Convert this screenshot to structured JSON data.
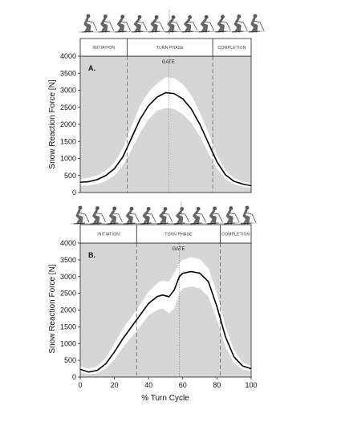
{
  "figure": {
    "ylabel": "Snow Reaction Force [N]",
    "xlabel": "% Turn Cycle"
  },
  "chart_data": [
    {
      "type": "line",
      "panel_label": "A.",
      "phases": [
        "INITIATION",
        "TURN PHASE",
        "COMPLETION"
      ],
      "phase_boundaries": [
        27.5,
        77.5
      ],
      "gate_label": "GATE",
      "gate_position": 52,
      "ylim": [
        0,
        4000
      ],
      "yticks": [
        0,
        500,
        1000,
        1500,
        2000,
        2500,
        3000,
        3500,
        4000
      ],
      "xlim": [
        0,
        100
      ],
      "x": [
        0,
        5,
        10,
        15,
        20,
        25,
        30,
        35,
        40,
        45,
        50,
        55,
        60,
        65,
        70,
        75,
        80,
        85,
        90,
        95,
        100
      ],
      "series": [
        {
          "values": [
            300,
            320,
            380,
            500,
            700,
            1050,
            1600,
            2150,
            2550,
            2800,
            2930,
            2900,
            2750,
            2450,
            2000,
            1450,
            900,
            520,
            330,
            250,
            200
          ]
        }
      ],
      "band_upper": [
        400,
        430,
        500,
        640,
        880,
        1300,
        1950,
        2550,
        2950,
        3200,
        3380,
        3350,
        3180,
        2850,
        2350,
        1750,
        1100,
        650,
        430,
        320,
        260
      ],
      "band_lower": [
        200,
        210,
        250,
        340,
        500,
        800,
        1250,
        1750,
        2150,
        2400,
        2480,
        2450,
        2300,
        2050,
        1650,
        1150,
        700,
        390,
        240,
        180,
        140
      ]
    },
    {
      "type": "line",
      "panel_label": "B.",
      "phases": [
        "INITIATION",
        "TURN PHASE",
        "COMPLETION"
      ],
      "phase_boundaries": [
        33,
        82
      ],
      "gate_label": "GATE",
      "gate_position": 58,
      "ylim": [
        0,
        4000
      ],
      "yticks": [
        0,
        500,
        1000,
        1500,
        2000,
        2500,
        3000,
        3500,
        4000
      ],
      "xlim": [
        0,
        100
      ],
      "xticks": [
        0,
        20,
        40,
        60,
        80,
        100
      ],
      "x": [
        0,
        5,
        10,
        15,
        20,
        25,
        30,
        35,
        40,
        45,
        48,
        52,
        55,
        58,
        60,
        65,
        70,
        75,
        80,
        85,
        90,
        95,
        100
      ],
      "series": [
        {
          "values": [
            230,
            150,
            200,
            400,
            750,
            1150,
            1500,
            1850,
            2200,
            2400,
            2450,
            2400,
            2600,
            3000,
            3100,
            3150,
            3100,
            2850,
            2100,
            1200,
            600,
            330,
            250
          ]
        }
      ],
      "band_upper": [
        320,
        250,
        320,
        580,
        1000,
        1450,
        1800,
        2150,
        2550,
        2800,
        2880,
        2850,
        3100,
        3400,
        3500,
        3580,
        3520,
        3250,
        2500,
        1500,
        800,
        430,
        330
      ],
      "band_lower": [
        150,
        80,
        110,
        260,
        520,
        880,
        1200,
        1500,
        1850,
        2000,
        2050,
        1900,
        2050,
        2500,
        2650,
        2700,
        2650,
        2400,
        1700,
        900,
        420,
        230,
        170
      ]
    }
  ]
}
